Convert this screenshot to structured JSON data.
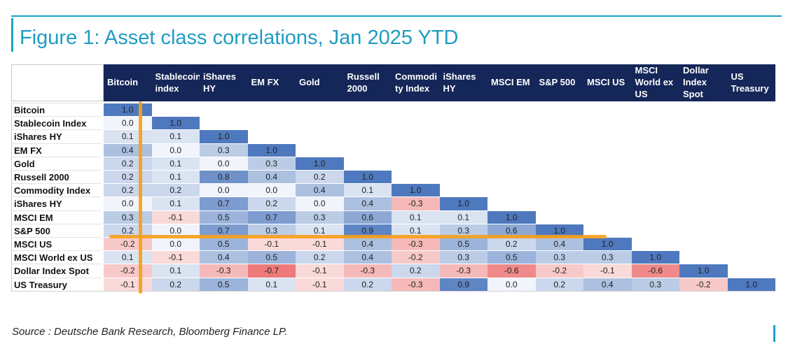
{
  "title": "Figure 1: Asset class correlations, Jan 2025 YTD",
  "source": "Source : Deutsche Bank Research, Bloomberg Finance LP.",
  "colors": {
    "accent": "#1aa3c8",
    "header_bg": "#152658",
    "positive": "#4a78c0",
    "negative": "#e84a4a",
    "highlight": "#f5a01a"
  },
  "chart_data": {
    "type": "heatmap",
    "title": "Figure 1: Asset class correlations, Jan 2025 YTD",
    "columns": [
      "Bitcoin",
      "Stablecoin index",
      "iShares HY",
      "EM FX",
      "Gold",
      "Russell 2000",
      "Commodi ty Index",
      "iShares HY",
      "MSCI EM",
      "S&P 500",
      "MSCI US",
      "MSCI World ex US",
      "Dollar Index Spot",
      "US Treasury"
    ],
    "rows": [
      "Bitcoin",
      "Stablecoin Index",
      "iShares HY",
      "EM FX",
      "Gold",
      "Russell 2000",
      "Commodity Index",
      "iShares HY",
      "MSCI EM",
      "S&P 500",
      "MSCI US",
      "MSCI World ex US",
      "Dollar Index Spot",
      "US Treasury"
    ],
    "values": [
      [
        "1.0"
      ],
      [
        "0.0",
        "1.0"
      ],
      [
        "0.1",
        "0.1",
        "1.0"
      ],
      [
        "0.4",
        "0.0",
        "0.3",
        "1.0"
      ],
      [
        "0.2",
        "0.1",
        "0.0",
        "0.3",
        "1.0"
      ],
      [
        "0.2",
        "0.1",
        "0.8",
        "0.4",
        "0.2",
        "1.0"
      ],
      [
        "0.2",
        "0.2",
        "0.0",
        "0.0",
        "0.4",
        "0.1",
        "1.0"
      ],
      [
        "0.0",
        "0.1",
        "0.7",
        "0.2",
        "0.0",
        "0.4",
        "-0.3",
        "1.0"
      ],
      [
        "0.3",
        "-0.1",
        "0.5",
        "0.7",
        "0.3",
        "0.6",
        "0.1",
        "0.1",
        "1.0"
      ],
      [
        "0.2",
        "0.0",
        "0.7",
        "0.3",
        "0.1",
        "0.9",
        "0.1",
        "0.3",
        "0.6",
        "1.0"
      ],
      [
        "-0.2",
        "0.0",
        "0.5",
        "-0.1",
        "-0.1",
        "0.4",
        "-0.3",
        "0.5",
        "0.2",
        "0.4",
        "1.0"
      ],
      [
        "0.1",
        "-0.1",
        "0.4",
        "0.5",
        "0.2",
        "0.4",
        "-0.2",
        "0.3",
        "0.5",
        "0.3",
        "0.3",
        "1.0"
      ],
      [
        "-0.2",
        "0.1",
        "-0.3",
        "-0.7",
        "-0.1",
        "-0.3",
        "0.2",
        "-0.3",
        "-0.6",
        "-0.2",
        "-0.1",
        "-0.6",
        "1.0"
      ],
      [
        "-0.1",
        "0.2",
        "0.5",
        "0.1",
        "-0.1",
        "0.2",
        "-0.3",
        "0.9",
        "0.0",
        "0.2",
        "0.4",
        "0.3",
        "-0.2",
        "1.0"
      ]
    ],
    "highlights": [
      {
        "type": "column",
        "label": "Bitcoin"
      },
      {
        "type": "row",
        "label": "S&P 500 / MSCI US"
      }
    ]
  }
}
